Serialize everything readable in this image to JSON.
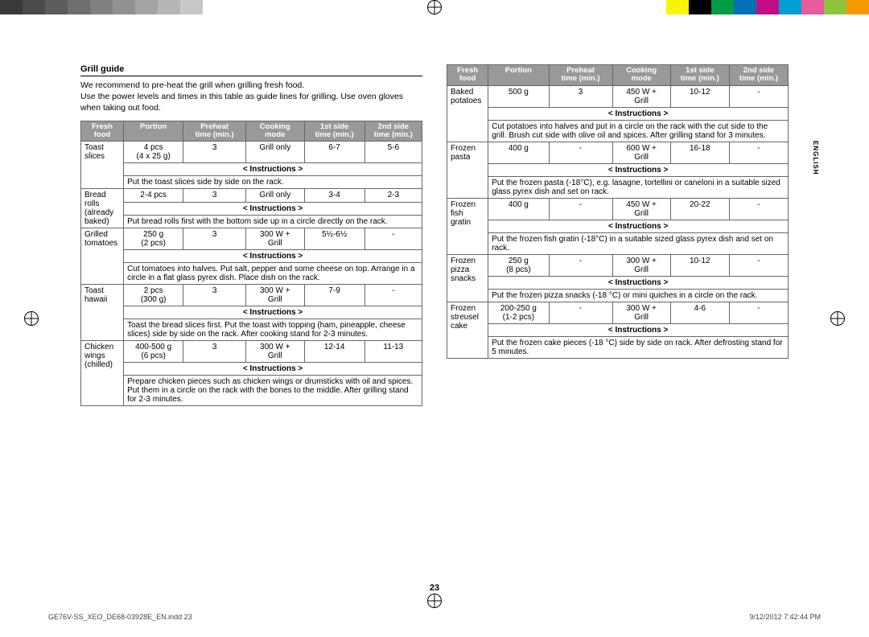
{
  "colorbar": {
    "left": [
      "#3a3a3a",
      "#4a4a4a",
      "#5c5c5c",
      "#6e6e6e",
      "#808080",
      "#929292",
      "#a4a4a4",
      "#b6b6b6",
      "#c8c8c8"
    ],
    "right": [
      "#f8f500",
      "#000000",
      "#009c47",
      "#0071b7",
      "#c10e82",
      "#00a0d4",
      "#e85b9c",
      "#8fc23f",
      "#f49a00"
    ]
  },
  "lang_tab": "ENGLISH",
  "page_number": "23",
  "footer_left": "GE76V-SS_XEO_DE68-03928E_EN.indd   23",
  "footer_right": "9/12/2012   7:42:44 PM",
  "section_title": "Grill guide",
  "intro": "We recommend to pre-heat the grill when grilling fresh food.\nUse the power levels and times in this table as guide lines for grilling. Use oven gloves when taking out food.",
  "headers": [
    "Fresh\nfood",
    "Portion",
    "Preheat\ntime (min.)",
    "Cooking\nmode",
    "1st side\ntime (min.)",
    "2nd side\ntime (min.)"
  ],
  "instr_label": "< Instructions >",
  "table_left": [
    {
      "food": "Toast slices",
      "portion": "4 pcs\n(4 x 25 g)",
      "preheat": "3",
      "mode": "Grill only",
      "side1": "6-7",
      "side2": "5-6",
      "instr": "Put the toast slices side by side on the rack."
    },
    {
      "food": "Bread rolls\n(already\nbaked)",
      "portion": "2-4 pcs",
      "preheat": "3",
      "mode": "Grill only",
      "side1": "3-4",
      "side2": "2-3",
      "instr": "Put bread rolls first with the bottom side up in a circle directly on the rack."
    },
    {
      "food": "Grilled\ntomatoes",
      "portion": "250 g\n(2 pcs)",
      "preheat": "3",
      "mode": "300 W +\nGrill",
      "side1": "5½-6½",
      "side2": "-",
      "instr": "Cut tomatoes into halves. Put salt, pepper and some cheese on top. Arrange in a circle in a flat glass pyrex dish. Place dish on the rack."
    },
    {
      "food": "Toast\nhawaii",
      "portion": "2 pcs\n(300 g)",
      "preheat": "3",
      "mode": "300 W +\nGrill",
      "side1": "7-9",
      "side2": "-",
      "instr": "Toast the bread slices first. Put the toast with topping (ham, pineapple, cheese slices) side by side on the rack. After cooking stand for 2-3 minutes."
    },
    {
      "food": "Chicken\nwings\n(chilled)",
      "portion": "400-500 g\n(6 pcs)",
      "preheat": "3",
      "mode": "300 W +\nGrill",
      "side1": "12-14",
      "side2": "11-13",
      "instr": "Prepare chicken pieces such as chicken wings or drumsticks with oil and spices. Put them in a circle on the rack with the bones to the middle. After grilling stand for 2-3 minutes."
    }
  ],
  "table_right": [
    {
      "food": "Baked\npotatoes",
      "portion": "500 g",
      "preheat": "3",
      "mode": "450 W +\nGrill",
      "side1": "10-12",
      "side2": "-",
      "instr": "Cut potatoes into halves and put in a circle on the rack with the cut side to the grill. Brush cut side with olive oil and spices. After grilling stand for 3 minutes."
    },
    {
      "food": "Frozen\npasta",
      "portion": "400 g",
      "preheat": "-",
      "mode": "600 W +\nGrill",
      "side1": "16-18",
      "side2": "-",
      "instr": "Put the frozen pasta (-18°C), e.g. lasagne, tortellini or caneloni in a suitable sized glass pyrex dish and set on rack."
    },
    {
      "food": "Frozen fish\ngratin",
      "portion": "400 g",
      "preheat": "-",
      "mode": "450 W +\nGrill",
      "side1": "20-22",
      "side2": "-",
      "instr": "Put the frozen fish gratin (-18°C) in a suitable sized glass pyrex dish and set on rack."
    },
    {
      "food": "Frozen\npizza\nsnacks",
      "portion": "250 g\n(8 pcs)",
      "preheat": "-",
      "mode": "300 W +\nGrill",
      "side1": "10-12",
      "side2": "-",
      "instr": "Put the frozen pizza snacks (-18 °C) or mini quiches in a circle on the rack."
    },
    {
      "food": "Frozen\nstreusel\ncake",
      "portion": "200-250 g\n(1-2 pcs)",
      "preheat": "-",
      "mode": "300 W +\nGrill",
      "side1": "4-6",
      "side2": "-",
      "instr": "Put the frozen cake pieces (-18 °C) side by side on rack. After defrosting stand for 5 minutes."
    }
  ]
}
